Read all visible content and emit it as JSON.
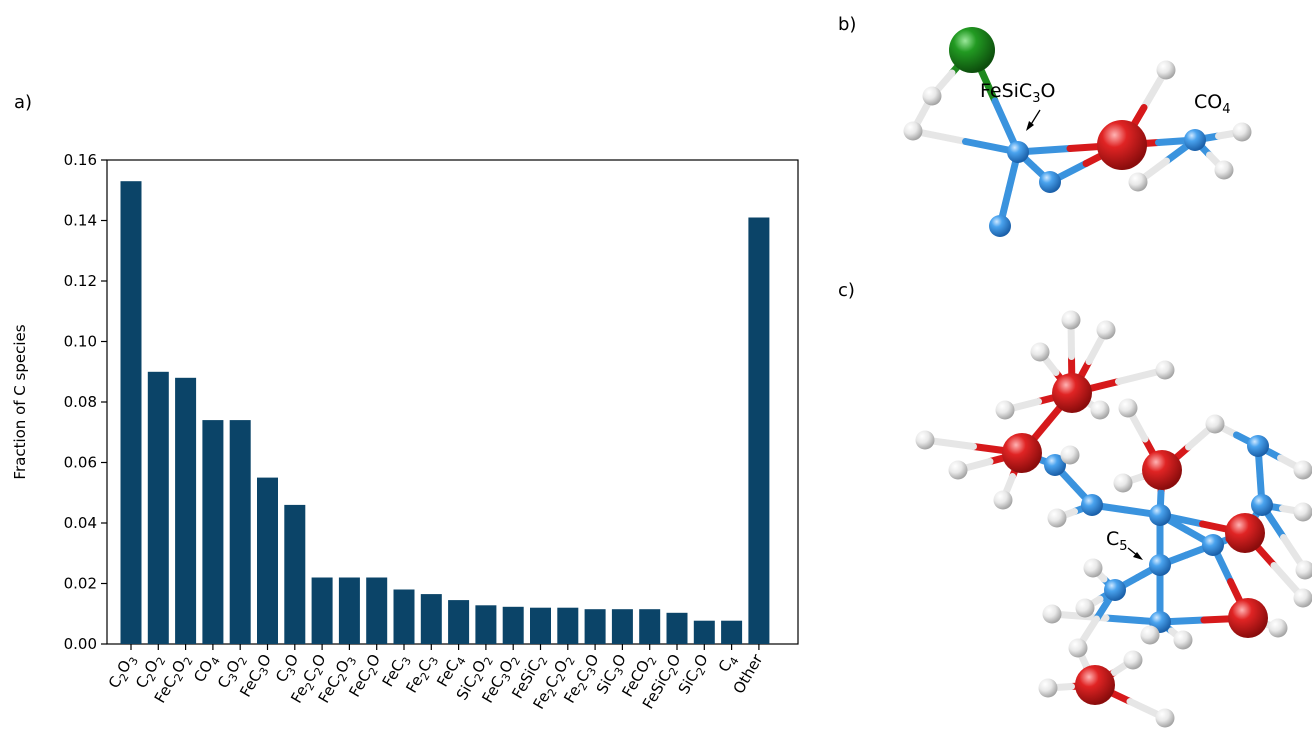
{
  "panels": {
    "a": "a)",
    "b": "b)",
    "c": "c)"
  },
  "chart_data": {
    "type": "bar",
    "title": "",
    "xlabel": "",
    "ylabel": "Fraction of C species",
    "ylim": [
      0,
      0.16
    ],
    "yticks": [
      "0.00",
      "0.02",
      "0.04",
      "0.06",
      "0.08",
      "0.10",
      "0.12",
      "0.14",
      "0.16"
    ],
    "categories": [
      "C2O3",
      "C2O2",
      "FeC2O2",
      "CO4",
      "C3O2",
      "FeC3O",
      "C3O",
      "Fe2C2O",
      "FeC2O3",
      "FeC2O",
      "FeC3",
      "Fe2C3",
      "FeC4",
      "SiC2O2",
      "FeC3O2",
      "FeSiC2",
      "Fe2C2O2",
      "Fe2C3O",
      "SiC3O",
      "FeCO2",
      "FeSiC2O",
      "SiC2O",
      "C4",
      "Other"
    ],
    "values": [
      0.153,
      0.09,
      0.088,
      0.074,
      0.074,
      0.055,
      0.046,
      0.022,
      0.022,
      0.022,
      0.018,
      0.0165,
      0.0145,
      0.0128,
      0.0123,
      0.012,
      0.012,
      0.0115,
      0.0115,
      0.0115,
      0.0103,
      0.0077,
      0.0077,
      0.141
    ],
    "grid": false,
    "bar_color": "#0b4468"
  },
  "molecule_b": {
    "labels": [
      "FeSiC3O",
      "CO4"
    ]
  },
  "molecule_c": {
    "labels": [
      "C5"
    ]
  },
  "colors": {
    "carbon": "#3a93de",
    "oxygen": "#d6191b",
    "iron": "#1f8a1f",
    "hydrogen": "#e6e6e6"
  }
}
